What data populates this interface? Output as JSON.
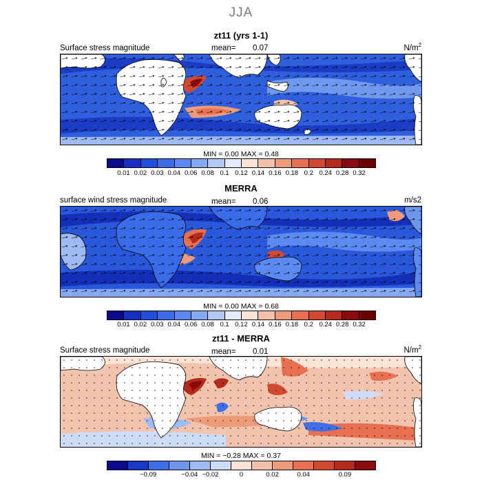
{
  "season": "JJA",
  "panels": [
    {
      "id": "model",
      "title": "zt11 (yrs 1-1)",
      "variable": "Surface stress magnitude",
      "mean_label": "mean=",
      "mean_value": "0.07",
      "units": "N/m",
      "units_sup": "2",
      "min_label": "MIN =",
      "min_value": "0.00",
      "max_label": "MAX =",
      "max_value": "0.48",
      "colorbar_ticks": [
        "0.01",
        "0.02",
        "0.03",
        "0.04",
        "0.06",
        "0.08",
        "0.1",
        "0.12",
        "0.14",
        "0.16",
        "0.18",
        "0.2",
        "0.24",
        "0.28",
        "0.32"
      ]
    },
    {
      "id": "obs",
      "title": "MERRA",
      "variable": "surface wind stress magnitude",
      "mean_label": "mean=",
      "mean_value": "0.06",
      "units": "m/s2",
      "units_sup": "",
      "min_label": "MIN =",
      "min_value": "0.00",
      "max_label": "MAX =",
      "max_value": "0.68",
      "colorbar_ticks": [
        "0.01",
        "0.02",
        "0.03",
        "0.04",
        "0.06",
        "0.08",
        "0.1",
        "0.12",
        "0.14",
        "0.16",
        "0.18",
        "0.2",
        "0.24",
        "0.28",
        "0.32"
      ]
    },
    {
      "id": "diff",
      "title": "zt11 - MERRA",
      "variable": "Surface stress magnitude",
      "mean_label": "mean=",
      "mean_value": "0.01",
      "units": "N/m",
      "units_sup": "2",
      "min_label": "MIN =",
      "min_value": "−0.28",
      "max_label": "MAX =",
      "max_value": "0.37",
      "colorbar_ticks": [
        "−0.09",
        "−0.04",
        "−0.02",
        "0",
        "0.02",
        "0.04",
        "0.09"
      ]
    }
  ],
  "colors": {
    "sequential": [
      "#0a0a8f",
      "#1530c0",
      "#1f4fd8",
      "#3a6be8",
      "#5b8bf0",
      "#86aaf2",
      "#b3c8f4",
      "#e4ebfa",
      "#fbe3d6",
      "#f5c0a8",
      "#ee9b7c",
      "#e6704f",
      "#d14a2f",
      "#b52a1b",
      "#8a0b0b"
    ],
    "diverging": [
      "#0a0a8f",
      "#1838c8",
      "#3e6fe6",
      "#6d96ef",
      "#9fbbf3",
      "#cfdcf7",
      "#fbe3d6",
      "#f5c0a8",
      "#ee9b7c",
      "#e6704f",
      "#d14a2f",
      "#b52a1b",
      "#8a0b0b"
    ],
    "land": "#ffffff",
    "model_base": "#2f5fdc",
    "obs_base": "#2a58da",
    "diff_base": "#f2c4ad"
  }
}
